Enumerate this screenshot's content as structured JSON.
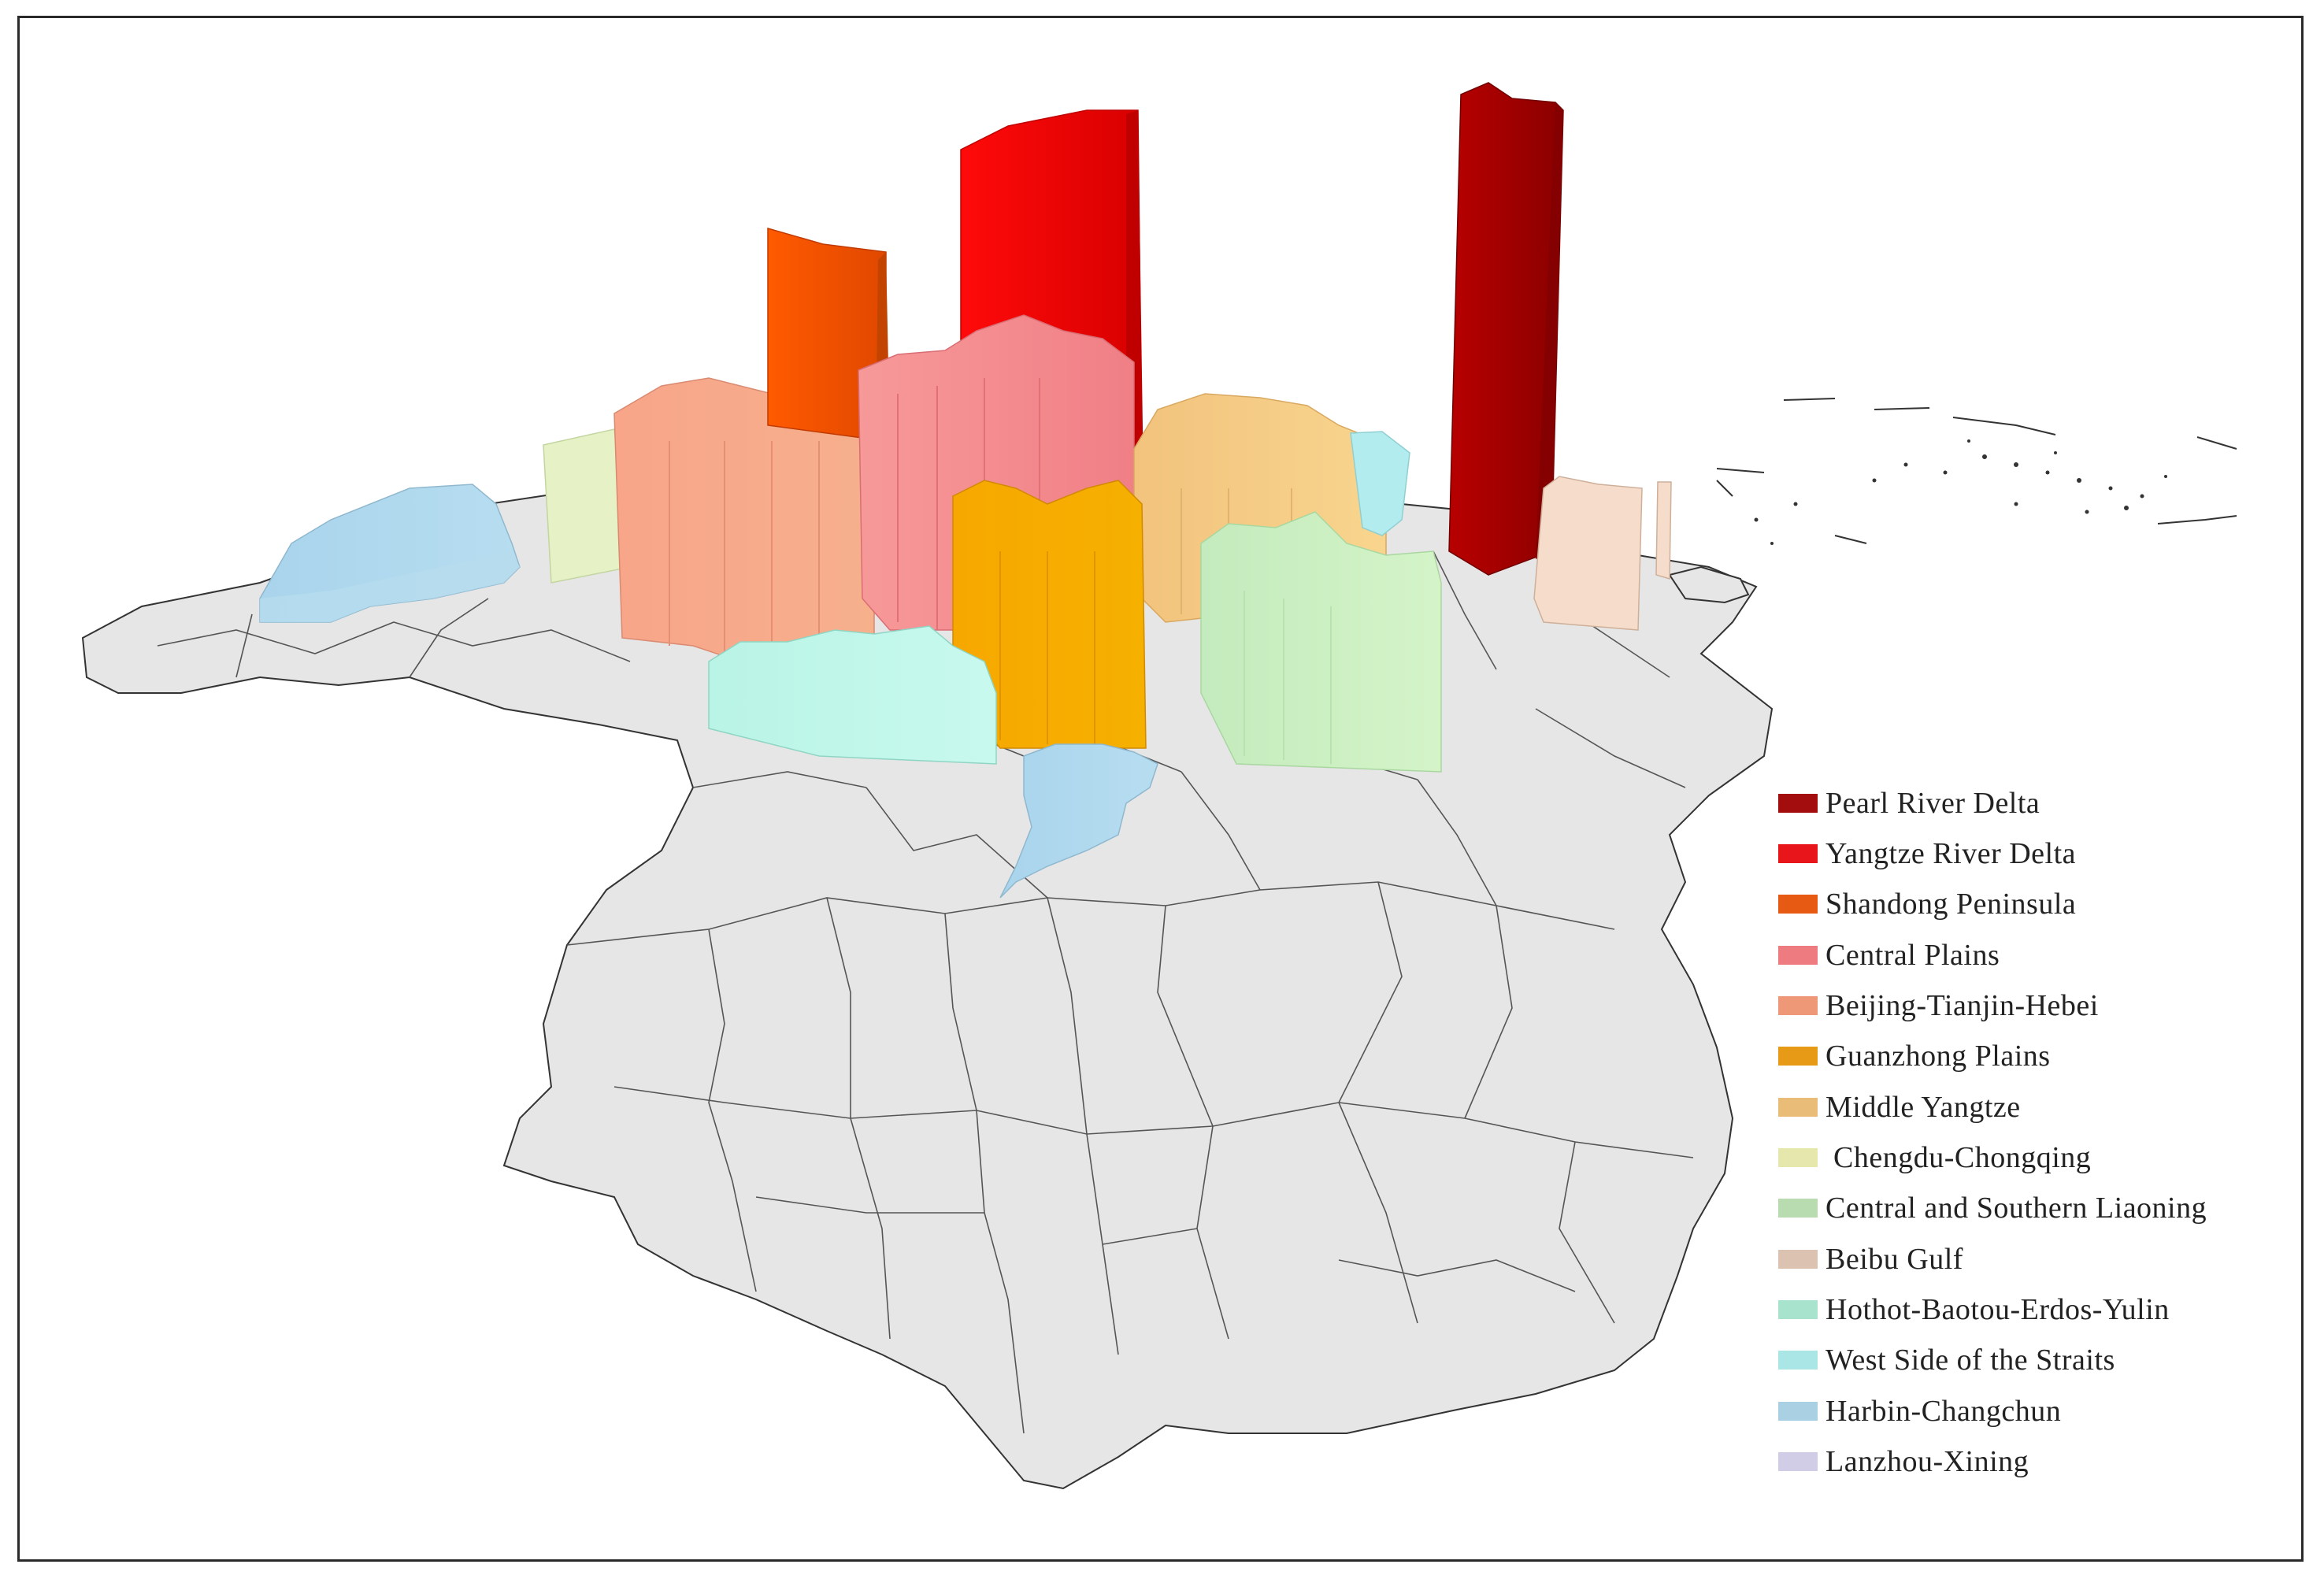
{
  "map": {
    "regions": [
      {
        "id": "pearl-river-delta",
        "label": "Pearl River Delta",
        "color": "#a30d0d"
      },
      {
        "id": "yangtze-river-delta",
        "label": "Yangtze River Delta",
        "color": "#e8161a"
      },
      {
        "id": "shandong-peninsula",
        "label": "Shandong Peninsula",
        "color": "#e65a14"
      },
      {
        "id": "central-plains",
        "label": "Central Plains",
        "color": "#ee7b80"
      },
      {
        "id": "beijing-tianjin-hebei",
        "label": "Beijing-Tianjin-Hebei",
        "color": "#ee9878"
      },
      {
        "id": "guanzhong-plains",
        "label": "Guanzhong Plains",
        "color": "#e69a16"
      },
      {
        "id": "middle-yangtze",
        "label": "Middle Yangtze",
        "color": "#e9bd78"
      },
      {
        "id": "chengdu-chongqing",
        "label": " Chengdu-Chongqing",
        "color": "#e6e7ad"
      },
      {
        "id": "central-southern-liaoning",
        "label": "Central and Southern Liaoning",
        "color": "#b8dcb0"
      },
      {
        "id": "beibu-gulf",
        "label": "Beibu Gulf",
        "color": "#dcc3b1"
      },
      {
        "id": "hothot-baotou-erdos-yulin",
        "label": "Hothot-Baotou-Erdos-Yulin",
        "color": "#a7e3cd"
      },
      {
        "id": "west-side-straits",
        "label": "West Side of the Straits",
        "color": "#abe6e6"
      },
      {
        "id": "harbin-changchun",
        "label": "Harbin-Changchun",
        "color": "#a9d0e3"
      },
      {
        "id": "lanzhou-xining",
        "label": "Lanzhou-Xining",
        "color": "#d2cde6"
      }
    ]
  }
}
